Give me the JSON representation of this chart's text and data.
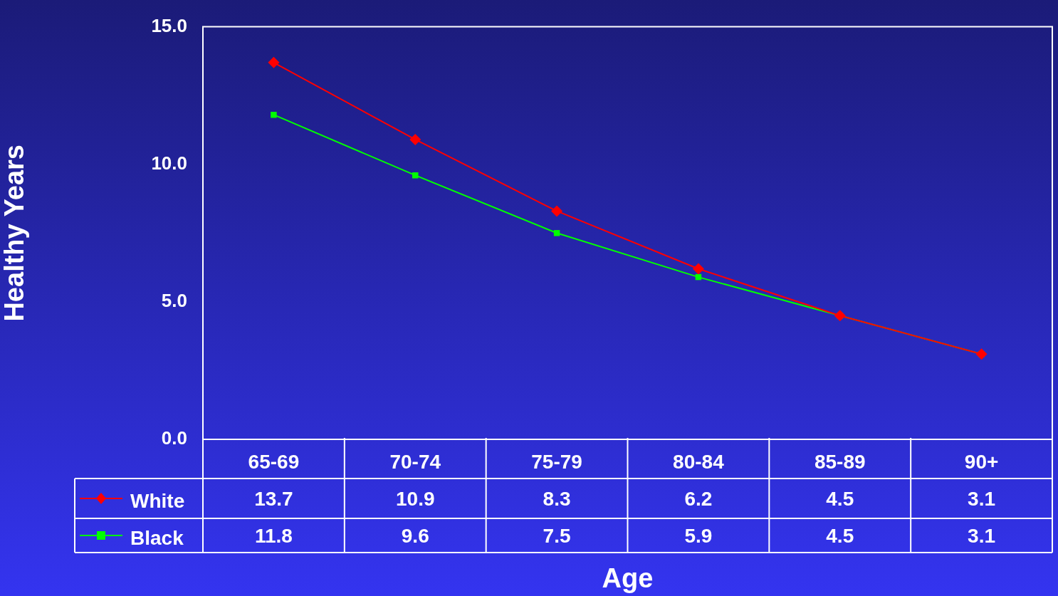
{
  "chart_data": {
    "type": "line",
    "xlabel": "Age",
    "ylabel": "Healthy Years",
    "categories": [
      "65-69",
      "70-74",
      "75-79",
      "80-84",
      "85-89",
      "90+"
    ],
    "series": [
      {
        "name": "White",
        "color": "#ff0000",
        "marker": "diamond",
        "values": [
          13.7,
          10.9,
          8.3,
          6.2,
          4.5,
          3.1
        ]
      },
      {
        "name": "Black",
        "color": "#00ff00",
        "marker": "square",
        "values": [
          11.8,
          9.6,
          7.5,
          5.9,
          4.5,
          3.1
        ]
      }
    ],
    "ylim": [
      0,
      15
    ],
    "yticks": [
      {
        "value": 0,
        "label": "0.0"
      },
      {
        "value": 5,
        "label": "5.0"
      },
      {
        "value": 10,
        "label": "10.0"
      },
      {
        "value": 15,
        "label": "15.0"
      }
    ],
    "grid": false,
    "legend": "bottom left",
    "data_labels": true,
    "line_style": "solid"
  }
}
